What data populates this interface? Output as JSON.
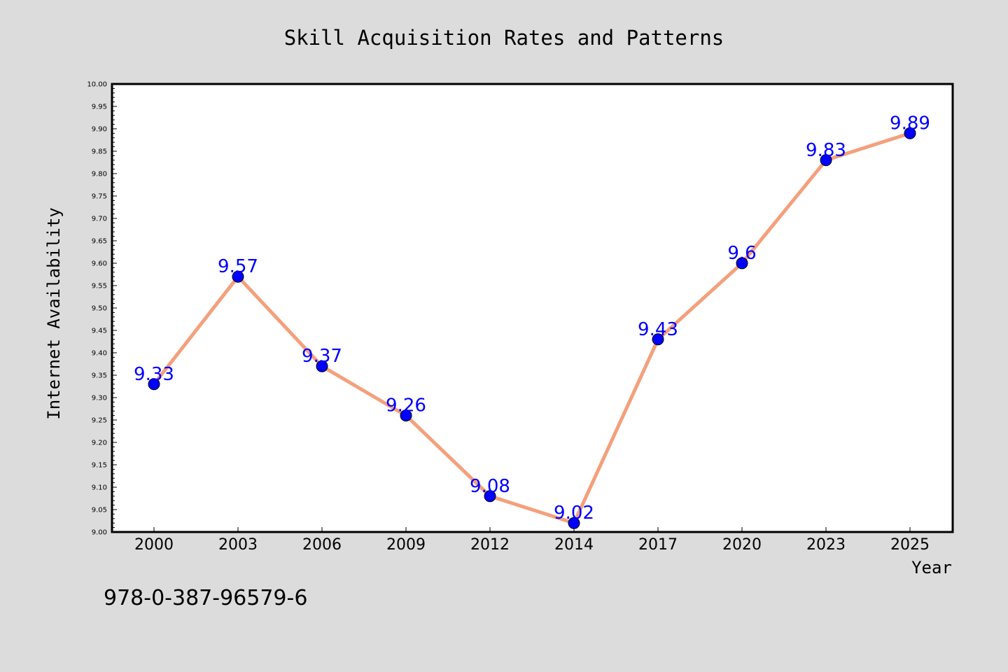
{
  "chart_data": {
    "type": "line",
    "title": "Skill Acquisition Rates and Patterns",
    "xlabel": "Year",
    "ylabel": "Internet Availability",
    "categories": [
      "2000",
      "2003",
      "2006",
      "2009",
      "2012",
      "2014",
      "2017",
      "2020",
      "2023",
      "2025"
    ],
    "series": [
      {
        "values": [
          9.33,
          9.57,
          9.37,
          9.26,
          9.08,
          9.02,
          9.43,
          9.6,
          9.83,
          9.89
        ],
        "labels": [
          "9.33",
          "9.57",
          "9.37",
          "9.26",
          "9.08",
          "9.02",
          "9.43",
          "9.6",
          "9.83",
          "9.89"
        ]
      }
    ],
    "ylim": [
      9.0,
      10.0
    ],
    "yticks": [
      "9.00",
      "9.05",
      "9.10",
      "9.15",
      "9.20",
      "9.25",
      "9.30",
      "9.35",
      "9.40",
      "9.45",
      "9.50",
      "9.55",
      "9.60",
      "9.65",
      "9.70",
      "9.75",
      "9.80",
      "9.85",
      "9.90",
      "9.95",
      "10.00"
    ],
    "grid": false,
    "line_color": "#f4a07c",
    "marker_color": "#0000ff",
    "label_color": "#0000ff",
    "footnote": "978-0-387-96579-6"
  }
}
